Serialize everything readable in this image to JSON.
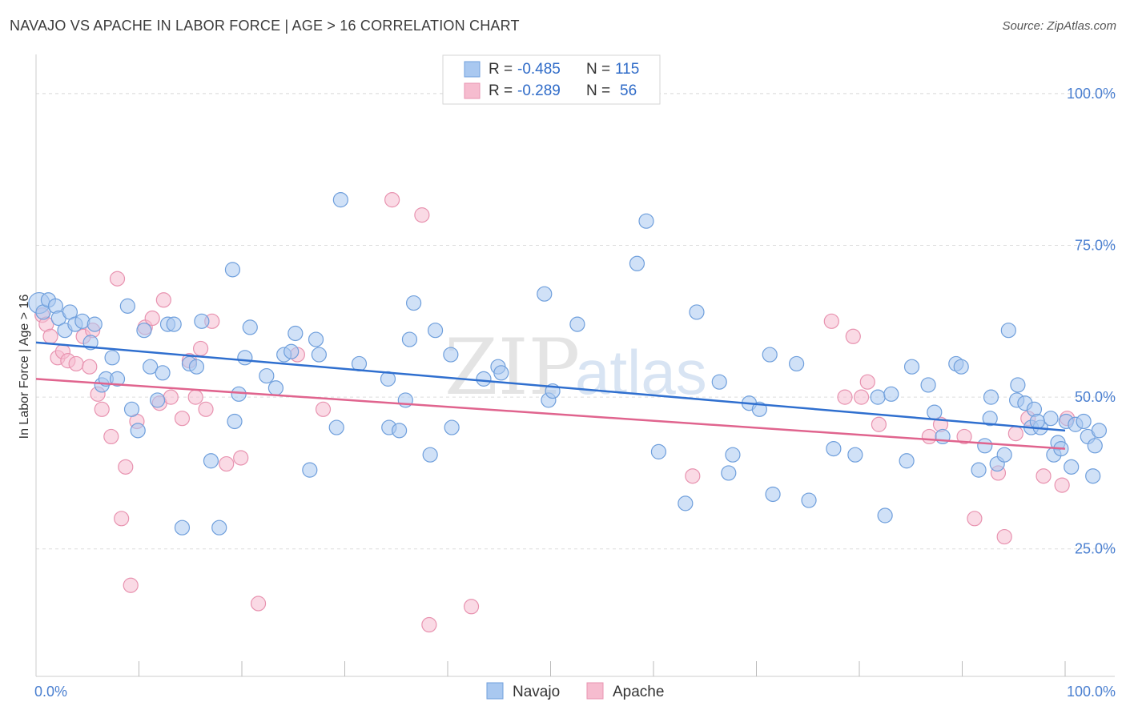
{
  "title": "NAVAJO VS APACHE IN LABOR FORCE | AGE > 16 CORRELATION CHART",
  "source": "Source: ZipAtlas.com",
  "watermark": "ZIPatlas",
  "colors": {
    "navajo_fill": "#a9c8f0",
    "navajo_stroke": "#6f9fdc",
    "navajo_line": "#2f6fcf",
    "apache_fill": "#f6bccf",
    "apache_stroke": "#e893b0",
    "apache_line": "#e0648e",
    "tick_text": "#4a7fd0",
    "grid": "#dddddd"
  },
  "legend": {
    "rows": [
      {
        "r_label": "R = ",
        "r_value": "-0.485",
        "n_label": "N = ",
        "n_value": "115"
      },
      {
        "r_label": "R = ",
        "r_value": "-0.289",
        "n_label": "N = ",
        "n_value": "56"
      }
    ]
  },
  "chart_data": {
    "type": "scatter",
    "title": "NAVAJO VS APACHE IN LABOR FORCE | AGE > 16 CORRELATION CHART",
    "ylabel": "In Labor Force | Age > 16",
    "xlabel": "",
    "xlim": [
      0,
      100
    ],
    "ylim": [
      4,
      105
    ],
    "x_tick_labels": [
      "0.0%",
      "100.0%"
    ],
    "y_ticks": [
      25,
      50,
      75,
      100
    ],
    "y_tick_labels": [
      "25.0%",
      "50.0%",
      "75.0%",
      "100.0%"
    ],
    "grid": "horizontal dashed",
    "legend_position": "top-center",
    "series": [
      {
        "name": "Navajo",
        "trend": {
          "x": [
            0,
            100
          ],
          "y": [
            59.0,
            44.5
          ]
        },
        "points": [
          [
            0.3,
            65.5
          ],
          [
            0.7,
            64.0
          ],
          [
            1.2,
            66.0
          ],
          [
            1.9,
            65.0
          ],
          [
            2.2,
            63.0
          ],
          [
            2.8,
            61.0
          ],
          [
            3.3,
            64.0
          ],
          [
            3.8,
            62.0
          ],
          [
            4.5,
            62.5
          ],
          [
            5.3,
            59.0
          ],
          [
            5.7,
            62.0
          ],
          [
            6.4,
            52.0
          ],
          [
            6.8,
            53.0
          ],
          [
            7.4,
            56.5
          ],
          [
            7.9,
            53.0
          ],
          [
            8.9,
            65.0
          ],
          [
            9.3,
            48.0
          ],
          [
            9.9,
            44.5
          ],
          [
            10.5,
            61.0
          ],
          [
            11.1,
            55.0
          ],
          [
            11.8,
            49.5
          ],
          [
            12.3,
            54.0
          ],
          [
            12.8,
            62.0
          ],
          [
            13.4,
            62.0
          ],
          [
            14.2,
            28.5
          ],
          [
            14.9,
            55.5
          ],
          [
            15.6,
            55.0
          ],
          [
            16.1,
            62.5
          ],
          [
            17.0,
            39.5
          ],
          [
            17.8,
            28.5
          ],
          [
            19.1,
            71.0
          ],
          [
            19.3,
            46.0
          ],
          [
            19.7,
            50.5
          ],
          [
            20.3,
            56.5
          ],
          [
            20.8,
            61.5
          ],
          [
            22.4,
            53.5
          ],
          [
            23.3,
            51.5
          ],
          [
            24.1,
            57.0
          ],
          [
            24.8,
            57.5
          ],
          [
            25.2,
            60.5
          ],
          [
            26.6,
            38.0
          ],
          [
            27.2,
            59.5
          ],
          [
            27.5,
            57.0
          ],
          [
            29.2,
            45.0
          ],
          [
            29.6,
            82.5
          ],
          [
            31.4,
            55.5
          ],
          [
            34.2,
            53.0
          ],
          [
            34.3,
            45.0
          ],
          [
            35.3,
            44.5
          ],
          [
            35.9,
            49.5
          ],
          [
            36.3,
            59.5
          ],
          [
            36.7,
            65.5
          ],
          [
            38.3,
            40.5
          ],
          [
            38.8,
            61.0
          ],
          [
            40.3,
            57.0
          ],
          [
            40.4,
            45.0
          ],
          [
            43.5,
            53.0
          ],
          [
            44.9,
            55.0
          ],
          [
            45.2,
            54.0
          ],
          [
            49.4,
            67.0
          ],
          [
            49.8,
            49.5
          ],
          [
            50.2,
            51.0
          ],
          [
            52.6,
            62.0
          ],
          [
            58.4,
            72.0
          ],
          [
            59.3,
            79.0
          ],
          [
            60.5,
            41.0
          ],
          [
            63.1,
            32.5
          ],
          [
            64.2,
            64.0
          ],
          [
            66.4,
            52.5
          ],
          [
            67.3,
            37.5
          ],
          [
            67.7,
            40.5
          ],
          [
            69.3,
            49.0
          ],
          [
            70.3,
            48.0
          ],
          [
            71.3,
            57.0
          ],
          [
            71.6,
            34.0
          ],
          [
            73.9,
            55.5
          ],
          [
            75.1,
            33.0
          ],
          [
            77.5,
            41.5
          ],
          [
            79.6,
            40.5
          ],
          [
            81.8,
            50.0
          ],
          [
            82.5,
            30.5
          ],
          [
            83.1,
            50.5
          ],
          [
            84.6,
            39.5
          ],
          [
            85.1,
            55.0
          ],
          [
            86.7,
            52.0
          ],
          [
            87.3,
            47.5
          ],
          [
            88.1,
            43.5
          ],
          [
            89.4,
            55.5
          ],
          [
            89.9,
            55.0
          ],
          [
            91.6,
            38.0
          ],
          [
            92.2,
            42.0
          ],
          [
            92.7,
            46.5
          ],
          [
            93.4,
            39.0
          ],
          [
            94.1,
            40.5
          ],
          [
            94.5,
            61.0
          ],
          [
            95.3,
            49.5
          ],
          [
            95.4,
            52.0
          ],
          [
            96.1,
            49.0
          ],
          [
            96.7,
            45.0
          ],
          [
            97.0,
            48.0
          ],
          [
            97.6,
            45.0
          ],
          [
            98.6,
            46.5
          ],
          [
            98.9,
            40.5
          ],
          [
            99.3,
            42.5
          ],
          [
            99.6,
            41.5
          ],
          [
            100.1,
            46.0
          ],
          [
            100.6,
            38.5
          ],
          [
            101.0,
            45.5
          ],
          [
            101.8,
            46.0
          ],
          [
            102.2,
            43.5
          ],
          [
            102.7,
            37.0
          ],
          [
            102.9,
            42.0
          ],
          [
            103.3,
            44.5
          ],
          [
            97.3,
            46.0
          ],
          [
            92.8,
            50.0
          ]
        ]
      },
      {
        "name": "Apache",
        "trend": {
          "x": [
            0,
            100
          ],
          "y": [
            53.0,
            41.5
          ]
        },
        "points": [
          [
            0.6,
            63.5
          ],
          [
            1.0,
            62.0
          ],
          [
            1.4,
            60.0
          ],
          [
            2.1,
            56.5
          ],
          [
            2.6,
            57.5
          ],
          [
            3.1,
            56.0
          ],
          [
            3.9,
            55.5
          ],
          [
            4.6,
            60.0
          ],
          [
            5.2,
            55.0
          ],
          [
            5.5,
            61.0
          ],
          [
            6.0,
            50.5
          ],
          [
            6.4,
            48.0
          ],
          [
            7.3,
            43.5
          ],
          [
            7.9,
            69.5
          ],
          [
            8.3,
            30.0
          ],
          [
            8.7,
            38.5
          ],
          [
            9.2,
            19.0
          ],
          [
            9.8,
            46.0
          ],
          [
            10.6,
            61.5
          ],
          [
            11.3,
            63.0
          ],
          [
            12.0,
            49.0
          ],
          [
            12.4,
            66.0
          ],
          [
            13.1,
            50.0
          ],
          [
            14.2,
            46.5
          ],
          [
            14.9,
            56.0
          ],
          [
            15.5,
            50.0
          ],
          [
            16.0,
            58.0
          ],
          [
            16.5,
            48.0
          ],
          [
            17.1,
            62.5
          ],
          [
            18.5,
            39.0
          ],
          [
            19.9,
            40.0
          ],
          [
            21.6,
            16.0
          ],
          [
            25.4,
            57.0
          ],
          [
            27.9,
            48.0
          ],
          [
            34.6,
            82.5
          ],
          [
            37.5,
            80.0
          ],
          [
            38.2,
            12.5
          ],
          [
            42.3,
            15.5
          ],
          [
            63.8,
            37.0
          ],
          [
            77.3,
            62.5
          ],
          [
            78.6,
            50.0
          ],
          [
            79.4,
            60.0
          ],
          [
            80.2,
            50.0
          ],
          [
            80.8,
            52.5
          ],
          [
            81.9,
            45.5
          ],
          [
            86.8,
            43.5
          ],
          [
            87.9,
            45.5
          ],
          [
            90.2,
            43.5
          ],
          [
            91.2,
            30.0
          ],
          [
            93.5,
            37.5
          ],
          [
            94.1,
            27.0
          ],
          [
            95.2,
            44.0
          ],
          [
            96.4,
            46.5
          ],
          [
            97.9,
            37.0
          ],
          [
            99.7,
            35.5
          ],
          [
            100.2,
            46.5
          ]
        ]
      }
    ]
  },
  "bottom_legend": [
    {
      "label": "Navajo"
    },
    {
      "label": "Apache"
    }
  ]
}
